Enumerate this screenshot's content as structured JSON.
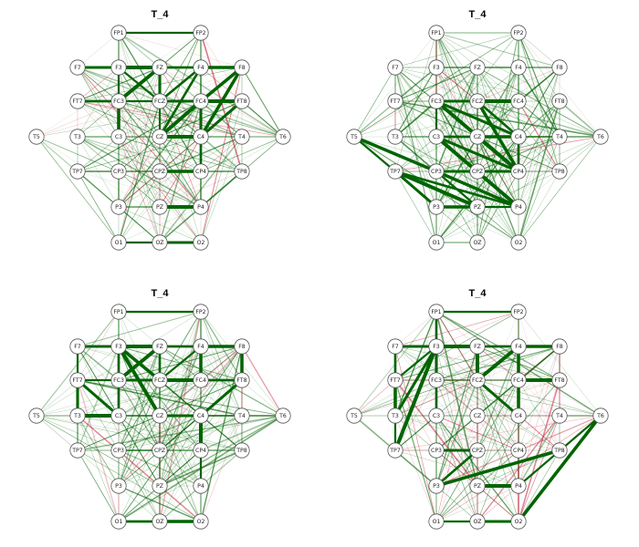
{
  "figure": {
    "type": "connectivity-graph-grid",
    "colors": {
      "positive": "#006400",
      "negative": "#c8324b",
      "node_fill": "#ffffff",
      "node_stroke": "#555555"
    }
  },
  "panels": [
    {
      "id": "top-left",
      "title": "T_4",
      "style": {
        "pos": 0.74,
        "density": 0.9
      },
      "strong_edges": [
        [
          "FP1",
          "FP2"
        ],
        [
          "F7",
          "F3"
        ],
        [
          "F3",
          "FZ"
        ],
        [
          "FZ",
          "F4"
        ],
        [
          "F4",
          "F8"
        ],
        [
          "F3",
          "FCZ"
        ],
        [
          "FZ",
          "FCZ"
        ],
        [
          "FZ",
          "FC3"
        ],
        [
          "F4",
          "FCZ"
        ],
        [
          "F8",
          "FC4"
        ],
        [
          "FC3",
          "FCZ"
        ],
        [
          "FCZ",
          "FC4"
        ],
        [
          "FC4",
          "FT8"
        ],
        [
          "FT7",
          "FC3"
        ],
        [
          "FC3",
          "C3"
        ],
        [
          "FCZ",
          "CZ"
        ],
        [
          "FC4",
          "C4"
        ],
        [
          "CZ",
          "C4"
        ],
        [
          "C4",
          "CP4"
        ],
        [
          "CPZ",
          "CP4"
        ],
        [
          "O1",
          "OZ"
        ],
        [
          "OZ",
          "O2"
        ],
        [
          "PZ",
          "P4"
        ],
        [
          "F4",
          "CZ"
        ],
        [
          "F8",
          "C4"
        ],
        [
          "F3",
          "C3"
        ],
        [
          "FT8",
          "C4"
        ],
        [
          "FC4",
          "CZ"
        ]
      ]
    },
    {
      "id": "top-right",
      "title": "T_4",
      "style": {
        "pos": 0.95,
        "density": 1.15
      },
      "strong_edges": [
        [
          "FC3",
          "CZ"
        ],
        [
          "FC3",
          "C4"
        ],
        [
          "FC3",
          "CP4"
        ],
        [
          "FCZ",
          "C4"
        ],
        [
          "FCZ",
          "CP4"
        ],
        [
          "C3",
          "CPZ"
        ],
        [
          "C3",
          "CP4"
        ],
        [
          "C3",
          "P4"
        ],
        [
          "CP3",
          "CPZ"
        ],
        [
          "CP3",
          "P4"
        ],
        [
          "CP3",
          "PZ"
        ],
        [
          "CPZ",
          "P4"
        ],
        [
          "CZ",
          "CP4"
        ],
        [
          "C4",
          "CP4"
        ],
        [
          "T5",
          "CP3"
        ],
        [
          "T5",
          "TP7"
        ],
        [
          "TP7",
          "P3"
        ],
        [
          "TP7",
          "PZ"
        ],
        [
          "TP7",
          "P4"
        ],
        [
          "P3",
          "PZ"
        ],
        [
          "PZ",
          "P4"
        ],
        [
          "FC3",
          "FCZ"
        ],
        [
          "FCZ",
          "FC4"
        ],
        [
          "C3",
          "CZ"
        ],
        [
          "CZ",
          "C4"
        ],
        [
          "FC3",
          "C3"
        ],
        [
          "CP3",
          "CP4"
        ]
      ]
    },
    {
      "id": "bottom-left",
      "title": "T_4",
      "style": {
        "pos": 0.9,
        "density": 1.0
      },
      "strong_edges": [
        [
          "FP1",
          "FP2"
        ],
        [
          "F7",
          "F3"
        ],
        [
          "F3",
          "FZ"
        ],
        [
          "FZ",
          "F4"
        ],
        [
          "F4",
          "F8"
        ],
        [
          "F7",
          "FT7"
        ],
        [
          "FT7",
          "T3"
        ],
        [
          "T3",
          "C3"
        ],
        [
          "F3",
          "FC3"
        ],
        [
          "F3",
          "FCZ"
        ],
        [
          "F3",
          "C3"
        ],
        [
          "FC3",
          "FCZ"
        ],
        [
          "FCZ",
          "FC4"
        ],
        [
          "FC4",
          "FT8"
        ],
        [
          "F8",
          "FT8"
        ],
        [
          "FT7",
          "FC3"
        ],
        [
          "FT7",
          "C3"
        ],
        [
          "FZ",
          "FC3"
        ],
        [
          "FZ",
          "FCZ"
        ],
        [
          "F4",
          "FC4"
        ],
        [
          "F4",
          "FCZ"
        ],
        [
          "CZ",
          "C4"
        ],
        [
          "C4",
          "CP4"
        ],
        [
          "O1",
          "OZ"
        ],
        [
          "OZ",
          "O2"
        ],
        [
          "CP4",
          "P4"
        ],
        [
          "FT8",
          "C4"
        ],
        [
          "F3",
          "CZ"
        ],
        [
          "FC3",
          "C3"
        ]
      ]
    },
    {
      "id": "bottom-right",
      "title": "T_4",
      "style": {
        "pos": 0.62,
        "density": 1.05
      },
      "strong_edges": [
        [
          "FP1",
          "FP2"
        ],
        [
          "F7",
          "F3"
        ],
        [
          "F3",
          "FZ"
        ],
        [
          "FZ",
          "F4"
        ],
        [
          "F4",
          "F8"
        ],
        [
          "F3",
          "FT7"
        ],
        [
          "F3",
          "T3"
        ],
        [
          "F3",
          "TP7"
        ],
        [
          "F7",
          "FT7"
        ],
        [
          "FT7",
          "T3"
        ],
        [
          "T3",
          "TP7"
        ],
        [
          "F3",
          "FC3"
        ],
        [
          "FZ",
          "FCZ"
        ],
        [
          "F4",
          "FC4"
        ],
        [
          "F4",
          "C4"
        ],
        [
          "FC4",
          "C4"
        ],
        [
          "FCZ",
          "C4"
        ],
        [
          "F4",
          "FCZ"
        ],
        [
          "F3",
          "C3"
        ],
        [
          "T6",
          "O2"
        ],
        [
          "T6",
          "P4"
        ],
        [
          "CP3",
          "CPZ"
        ],
        [
          "PZ",
          "P4"
        ],
        [
          "P3",
          "CPZ"
        ],
        [
          "P3",
          "TP8"
        ],
        [
          "O1",
          "OZ"
        ],
        [
          "OZ",
          "O2"
        ],
        [
          "FT8",
          "FC4"
        ],
        [
          "FP1",
          "F3"
        ]
      ]
    }
  ],
  "electrodes": [
    "FP1",
    "FP2",
    "F7",
    "F3",
    "FZ",
    "F4",
    "F8",
    "FT7",
    "FC3",
    "FCZ",
    "FC4",
    "FT8",
    "T5",
    "T3",
    "C3",
    "CZ",
    "C4",
    "T4",
    "T6",
    "TP7",
    "CP3",
    "CPZ",
    "CP4",
    "TP8",
    "P3",
    "PZ",
    "P4",
    "O1",
    "OZ",
    "O2"
  ]
}
